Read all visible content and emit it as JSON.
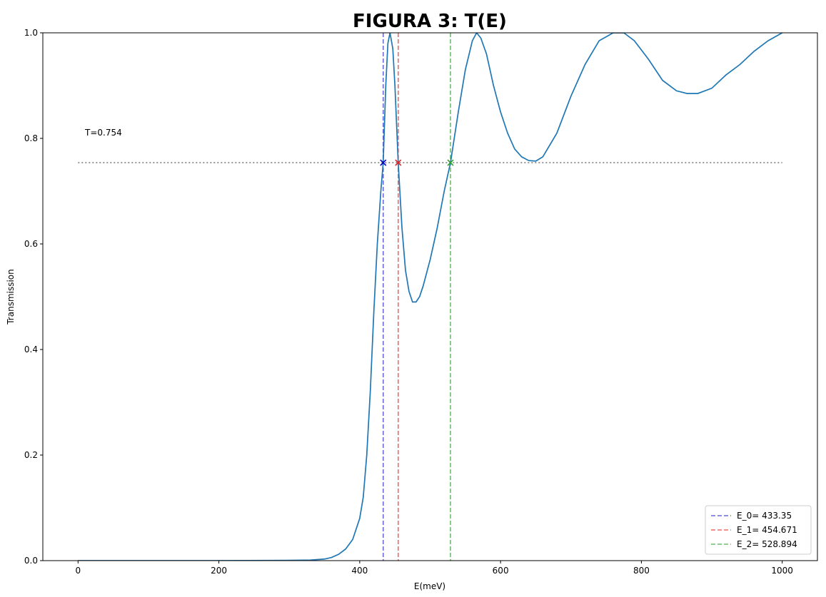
{
  "chart_data": {
    "type": "line",
    "title": "FIGURA 3: T(E)",
    "xlabel": "E(meV)",
    "ylabel": "Transmission",
    "xlim": [
      -50,
      1050
    ],
    "ylim": [
      0.0,
      1.0
    ],
    "xticks": [
      0,
      200,
      400,
      600,
      800,
      1000
    ],
    "xtick_labels": [
      "0",
      "200",
      "400",
      "600",
      "800",
      "1000"
    ],
    "yticks": [
      0.0,
      0.2,
      0.4,
      0.6,
      0.8,
      1.0
    ],
    "ytick_labels": [
      "0.0",
      "0.2",
      "0.4",
      "0.6",
      "0.8",
      "1.0"
    ],
    "series": [
      {
        "name": "T(E)",
        "color": "#1f77b4",
        "x": [
          0,
          100,
          200,
          300,
          330,
          350,
          360,
          370,
          380,
          390,
          400,
          405,
          410,
          415,
          420,
          425,
          430,
          433.35,
          437,
          440,
          443,
          447,
          450,
          454.671,
          460,
          465,
          470,
          475,
          480,
          485,
          490,
          500,
          510,
          520,
          528.894,
          540,
          550,
          560,
          566,
          572,
          580,
          590,
          600,
          610,
          620,
          630,
          640,
          650,
          660,
          680,
          700,
          720,
          740,
          760,
          775,
          790,
          810,
          830,
          850,
          865,
          880,
          900,
          920,
          940,
          960,
          980,
          1000
        ],
        "y": [
          0.0,
          0.0,
          0.0,
          0.0005,
          0.001,
          0.003,
          0.006,
          0.012,
          0.022,
          0.04,
          0.08,
          0.12,
          0.2,
          0.32,
          0.47,
          0.6,
          0.7,
          0.754,
          0.9,
          0.98,
          1.0,
          0.97,
          0.9,
          0.754,
          0.63,
          0.55,
          0.51,
          0.49,
          0.49,
          0.5,
          0.52,
          0.57,
          0.63,
          0.7,
          0.754,
          0.85,
          0.93,
          0.985,
          1.0,
          0.99,
          0.96,
          0.9,
          0.85,
          0.81,
          0.78,
          0.765,
          0.758,
          0.757,
          0.765,
          0.81,
          0.88,
          0.94,
          0.985,
          1.0,
          1.0,
          0.985,
          0.95,
          0.91,
          0.89,
          0.885,
          0.885,
          0.895,
          0.92,
          0.94,
          0.965,
          0.985,
          1.0
        ]
      }
    ],
    "threshold": {
      "label": "T=0.754",
      "value": 0.754,
      "x_range": [
        0,
        1000
      ],
      "color": "#808080"
    },
    "markers": [
      {
        "name": "E_0",
        "x": 433.35,
        "y": 0.754,
        "color": "#0000cd"
      },
      {
        "name": "E_1",
        "x": 454.671,
        "y": 0.754,
        "color": "#d62728"
      },
      {
        "name": "E_2",
        "x": 528.894,
        "y": 0.754,
        "color": "#2ca02c"
      }
    ],
    "vlines": [
      {
        "x": 433.35,
        "color": "#6a6ad8"
      },
      {
        "x": 454.671,
        "color": "#f06a6a"
      },
      {
        "x": 528.894,
        "color": "#6abf6a"
      }
    ],
    "legend": {
      "position": "lower-right",
      "entries": [
        {
          "label": "E_0= 433.35",
          "color": "#6a6ad8"
        },
        {
          "label": "E_1= 454.671",
          "color": "#f06a6a"
        },
        {
          "label": "E_2= 528.894",
          "color": "#6abf6a"
        }
      ]
    }
  }
}
